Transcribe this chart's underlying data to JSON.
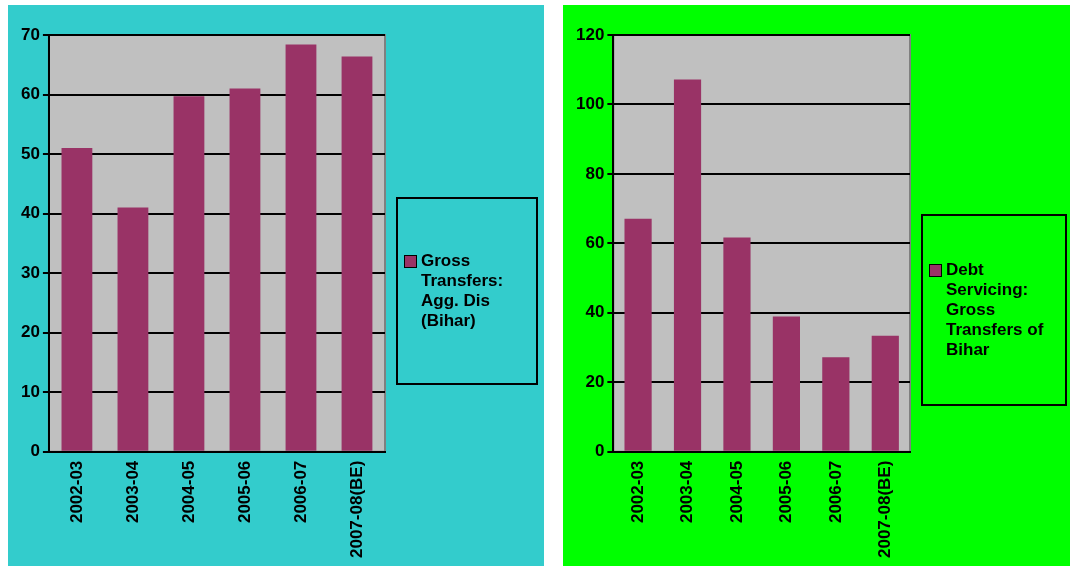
{
  "chart_data": [
    {
      "type": "bar",
      "categories": [
        "2002-03",
        "2003-04",
        "2004-05",
        "2005-06",
        "2006-07",
        "2007-08(BE)"
      ],
      "series": [
        {
          "name": "Gross Transfers: Agg. Dis (Bihar)",
          "color": "#993366",
          "values": [
            51,
            41,
            59.7,
            61,
            68.4,
            66.4
          ]
        }
      ],
      "ylim": [
        0,
        70
      ],
      "yticks": [
        0,
        10,
        20,
        30,
        40,
        50,
        60,
        70
      ],
      "grid": "y",
      "legend": "right"
    },
    {
      "type": "bar",
      "categories": [
        "2002-03",
        "2003-04",
        "2004-05",
        "2005-06",
        "2006-07",
        "2007-08(BE)"
      ],
      "series": [
        {
          "name": "Debt Servicing: Gross Transfers of Bihar",
          "color": "#993366",
          "values": [
            67.1,
            107.2,
            61.7,
            38.9,
            27.2,
            33.4
          ]
        }
      ],
      "ylim": [
        0,
        120
      ],
      "yticks": [
        0,
        20,
        40,
        60,
        80,
        100,
        120
      ],
      "grid": "y",
      "legend": "right"
    }
  ]
}
